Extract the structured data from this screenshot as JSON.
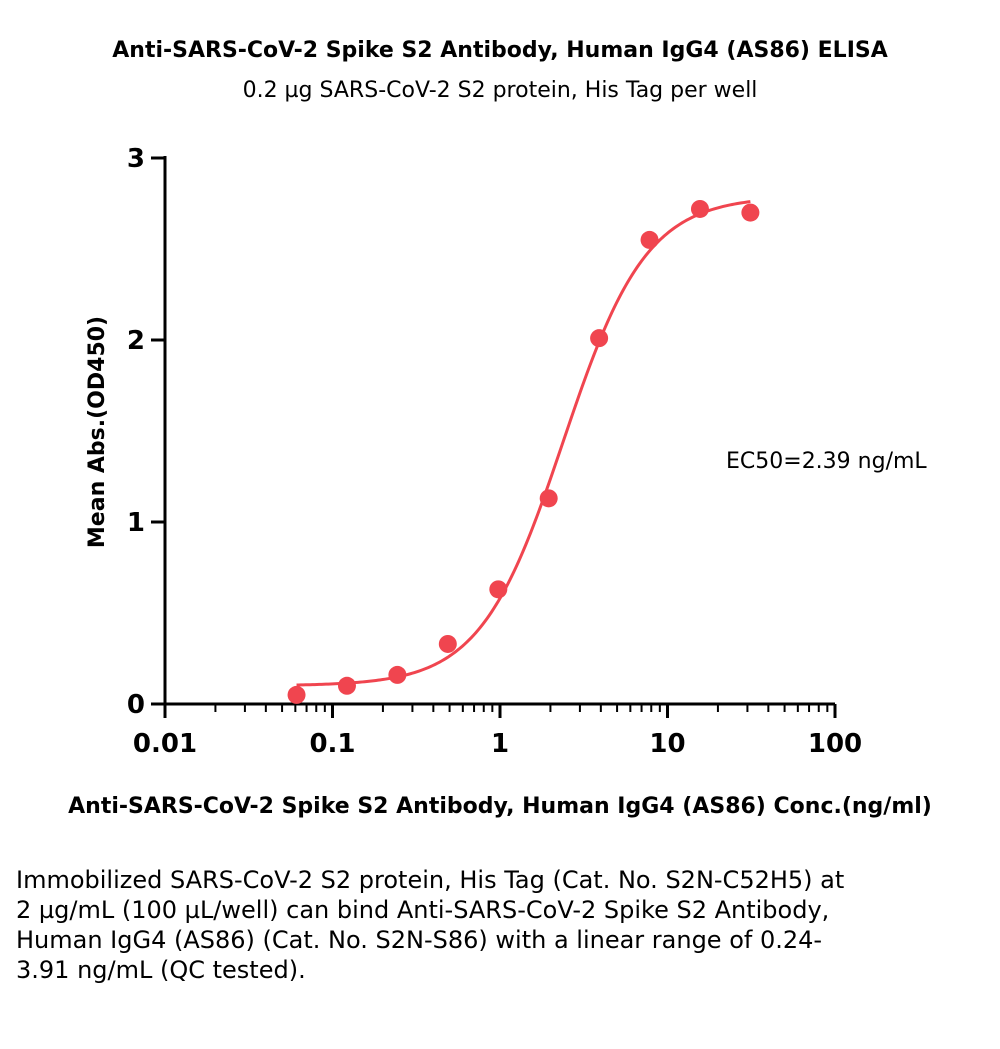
{
  "chart_data": {
    "type": "scatter",
    "title": "Anti-SARS-CoV-2 Spike S2 Antibody, Human IgG4 (AS86) ELISA",
    "subtitle": "0.2 µg SARS-CoV-2 S2 protein, His Tag per well",
    "xlabel": "Anti-SARS-CoV-2 Spike S2 Antibody, Human IgG4 (AS86) Conc.(ng/ml)",
    "ylabel": "Mean Abs.(OD450)",
    "x_scale": "log",
    "xlim": [
      0.01,
      100
    ],
    "ylim": [
      0,
      3
    ],
    "x_ticks": [
      0.01,
      0.1,
      1,
      10,
      100
    ],
    "x_tick_labels": [
      "0.01",
      "0.1",
      "1",
      "10",
      "100"
    ],
    "y_ticks": [
      0,
      1,
      2,
      3
    ],
    "y_tick_labels": [
      "0",
      "1",
      "2",
      "3"
    ],
    "grid": false,
    "series": [
      {
        "x": [
          0.061,
          0.122,
          0.244,
          0.488,
          0.977,
          1.953,
          3.906,
          7.813,
          15.625,
          31.25
        ],
        "y": [
          0.05,
          0.1,
          0.16,
          0.33,
          0.63,
          1.13,
          2.01,
          2.55,
          2.72,
          2.7
        ],
        "color": "#f0454f"
      }
    ],
    "fit_curve": {
      "type": "4PL",
      "bottom": 0.1,
      "top": 2.79,
      "ec50": 2.39,
      "hill": 1.75,
      "x_range": [
        0.061,
        31.25
      ],
      "color": "#f0454f"
    },
    "annotation": "EC50=2.39 ng/mL"
  },
  "caption": "Immobilized SARS-CoV-2 S2 protein, His Tag (Cat. No. S2N-C52H5) at 2 µg/mL (100 µL/well) can bind Anti-SARS-CoV-2 Spike S2 Antibody, Human IgG4 (AS86) (Cat. No. S2N-S86) with a linear range of 0.24-3.91 ng/mL (QC tested)."
}
